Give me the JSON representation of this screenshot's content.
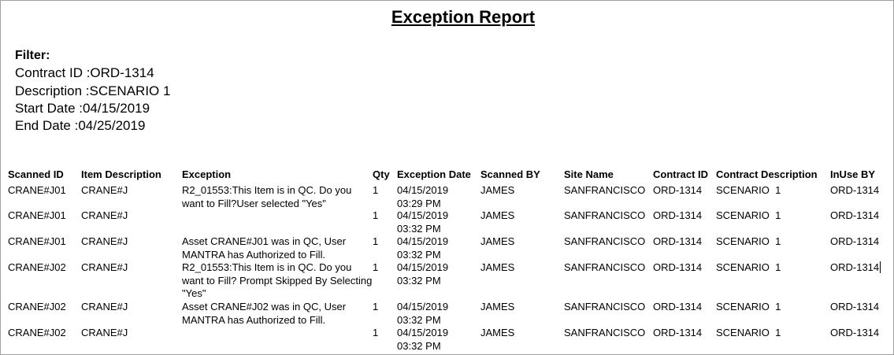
{
  "title": "Exception Report",
  "filter": {
    "label": "Filter:",
    "lines": [
      "Contract ID :ORD-1314",
      "Description :SCENARIO 1",
      "Start Date :04/15/2019",
      "End Date :04/25/2019"
    ]
  },
  "columns": [
    "Scanned ID",
    "Item Description",
    "Exception",
    "Qty",
    "Exception Date",
    "Scanned BY",
    "Site Name",
    "Contract ID",
    "Contract Description",
    "InUse BY"
  ],
  "rows": [
    {
      "scanned_id": "CRANE#J01",
      "item": "CRANE#J",
      "exception": "R2_01553:This Item is in QC. Do you want to Fill?User selected \"Yes\"",
      "qty": "1",
      "date": "04/15/2019",
      "time": "03:29 PM",
      "by": "JAMES",
      "site": "SANFRANCISCO",
      "contract_id": "ORD-1314",
      "contract_desc": "SCENARIO  1",
      "inuse": "ORD-1314"
    },
    {
      "scanned_id": "CRANE#J01",
      "item": "CRANE#J",
      "exception": "",
      "qty": "1",
      "date": "04/15/2019",
      "time": "03:32 PM",
      "by": "JAMES",
      "site": "SANFRANCISCO",
      "contract_id": "ORD-1314",
      "contract_desc": "SCENARIO  1",
      "inuse": "ORD-1314"
    },
    {
      "scanned_id": "CRANE#J01",
      "item": "CRANE#J",
      "exception": "Asset CRANE#J01 was in QC, User MANTRA has Authorized to Fill.",
      "qty": "1",
      "date": "04/15/2019",
      "time": "03:32 PM",
      "by": "JAMES",
      "site": "SANFRANCISCO",
      "contract_id": "ORD-1314",
      "contract_desc": "SCENARIO  1",
      "inuse": "ORD-1314"
    },
    {
      "scanned_id": "CRANE#J02",
      "item": "CRANE#J",
      "exception": "R2_01553:This Item is in QC. Do you want to Fill? Prompt Skipped By Selecting   \"Yes\"",
      "qty": "1",
      "date": "04/15/2019",
      "time": "03:32 PM",
      "by": "JAMES",
      "site": "SANFRANCISCO",
      "contract_id": "ORD-1314",
      "contract_desc": "SCENARIO  1",
      "inuse": "ORD-1314"
    },
    {
      "scanned_id": "CRANE#J02",
      "item": "CRANE#J",
      "exception": "Asset CRANE#J02 was in QC, User MANTRA has Authorized to Fill.",
      "qty": "1",
      "date": "04/15/2019",
      "time": "03:32 PM",
      "by": "JAMES",
      "site": "SANFRANCISCO",
      "contract_id": "ORD-1314",
      "contract_desc": "SCENARIO  1",
      "inuse": "ORD-1314"
    },
    {
      "scanned_id": "CRANE#J02",
      "item": "CRANE#J",
      "exception": "",
      "qty": "1",
      "date": "04/15/2019",
      "time": "03:32 PM",
      "by": "JAMES",
      "site": "SANFRANCISCO",
      "contract_id": "ORD-1314",
      "contract_desc": "SCENARIO  1",
      "inuse": "ORD-1314"
    }
  ]
}
